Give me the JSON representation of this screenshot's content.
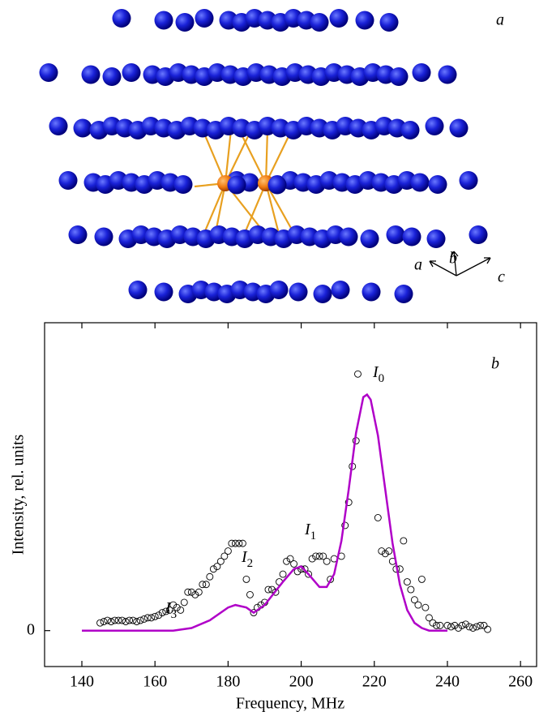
{
  "structure": {
    "panel_label": "a",
    "axis_labels": [
      "a",
      "b",
      "c"
    ]
  },
  "chart_data": {
    "type": "scatter",
    "panel_label": "b",
    "x_label": "Frequency, MHz",
    "y_label": "Intensity, rel. units",
    "xlim": [
      129.8,
      264.4
    ],
    "ylim": [
      -0.14,
      1.2
    ],
    "xticks": [
      140,
      160,
      180,
      200,
      220,
      240,
      260
    ],
    "yticks": [
      0
    ],
    "annotations": [
      {
        "text": "I",
        "subscript": "0"
      },
      {
        "text": "I",
        "subscript": "1"
      },
      {
        "text": "I",
        "subscript": "2"
      },
      {
        "text": "I",
        "subscript": "3"
      }
    ],
    "series": [
      {
        "type": "scatter",
        "color": "#000000",
        "x": [
          145,
          146,
          147,
          148,
          149,
          150,
          151,
          152,
          153,
          154,
          155,
          156,
          157,
          158,
          159,
          160,
          161,
          162,
          163,
          164,
          165,
          166,
          167,
          168,
          169,
          170,
          171,
          172,
          173,
          174,
          175,
          176,
          177,
          178,
          179,
          180,
          181,
          182,
          183,
          184,
          185,
          186,
          187,
          188,
          189,
          190,
          191,
          192,
          193,
          194,
          195,
          196,
          197,
          198,
          199,
          200,
          201,
          202,
          203,
          204,
          205,
          206,
          207,
          208,
          209,
          211,
          212,
          213,
          214,
          215,
          215.5,
          221,
          222,
          223,
          224,
          225,
          226,
          227,
          228,
          229,
          230,
          231,
          232,
          233,
          234,
          235,
          236,
          237,
          238,
          240,
          241,
          242,
          243,
          244,
          245,
          246,
          247,
          248,
          249,
          250,
          251
        ],
        "values": [
          0.03,
          0.035,
          0.04,
          0.035,
          0.04,
          0.04,
          0.04,
          0.035,
          0.04,
          0.04,
          0.035,
          0.04,
          0.045,
          0.05,
          0.05,
          0.055,
          0.06,
          0.07,
          0.075,
          0.08,
          0.1,
          0.09,
          0.08,
          0.11,
          0.15,
          0.15,
          0.14,
          0.15,
          0.18,
          0.18,
          0.21,
          0.24,
          0.25,
          0.27,
          0.29,
          0.31,
          0.34,
          0.34,
          0.34,
          0.34,
          0.2,
          0.14,
          0.07,
          0.09,
          0.1,
          0.11,
          0.16,
          0.16,
          0.15,
          0.19,
          0.22,
          0.27,
          0.28,
          0.26,
          0.23,
          0.24,
          0.24,
          0.22,
          0.28,
          0.29,
          0.29,
          0.29,
          0.27,
          0.2,
          0.28,
          0.29,
          0.41,
          0.5,
          0.64,
          0.74,
          1.0,
          0.44,
          0.31,
          0.3,
          0.31,
          0.27,
          0.24,
          0.24,
          0.35,
          0.19,
          0.16,
          0.12,
          0.1,
          0.2,
          0.09,
          0.05,
          0.03,
          0.02,
          0.02,
          0.02,
          0.015,
          0.02,
          0.01,
          0.02,
          0.025,
          0.015,
          0.01,
          0.015,
          0.02,
          0.02,
          0.005
        ]
      },
      {
        "type": "line",
        "color": "#b000c8",
        "x": [
          140,
          165,
          170,
          175,
          180,
          182,
          185,
          187,
          190,
          195,
          198,
          200,
          202,
          205,
          207,
          209,
          211,
          213,
          215,
          217,
          218,
          219,
          221,
          223,
          225,
          227,
          229,
          231,
          233,
          235,
          240
        ],
        "values": [
          0,
          0,
          0.01,
          0.04,
          0.09,
          0.1,
          0.09,
          0.07,
          0.1,
          0.19,
          0.24,
          0.25,
          0.22,
          0.17,
          0.17,
          0.22,
          0.35,
          0.55,
          0.77,
          0.91,
          0.92,
          0.9,
          0.76,
          0.55,
          0.34,
          0.18,
          0.08,
          0.03,
          0.01,
          0,
          0
        ]
      }
    ]
  }
}
